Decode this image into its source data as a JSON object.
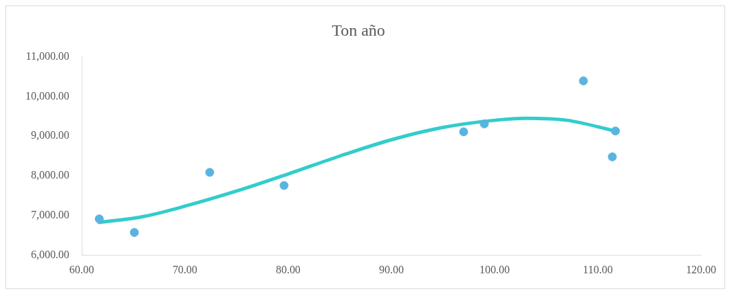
{
  "chart_data": {
    "type": "scatter",
    "title": "Ton año",
    "xlim": [
      60,
      120
    ],
    "xticks": [
      {
        "value": 60,
        "label": "60.00"
      },
      {
        "value": 70,
        "label": "70.00"
      },
      {
        "value": 80,
        "label": "80.00"
      },
      {
        "value": 90,
        "label": "90.00"
      },
      {
        "value": 100,
        "label": "100.00"
      },
      {
        "value": 110,
        "label": "110.00"
      },
      {
        "value": 120,
        "label": "120.00"
      }
    ],
    "ylim": [
      6000,
      11000
    ],
    "yticks": [
      {
        "value": 6000,
        "label": "6,000.00"
      },
      {
        "value": 7000,
        "label": "7,000.00"
      },
      {
        "value": 8000,
        "label": "8,000.00"
      },
      {
        "value": 9000,
        "label": "9,000.00"
      },
      {
        "value": 10000,
        "label": "10,000.00"
      },
      {
        "value": 11000,
        "label": "11,000.00"
      }
    ],
    "grid": false,
    "legend": false,
    "marker": "circle",
    "series": [
      {
        "type": "scatter",
        "color": "#5ab4e0",
        "x": [
          61.7,
          65.1,
          72.4,
          79.6,
          97.0,
          99.0,
          108.6,
          111.4,
          111.7
        ],
        "values": [
          6920,
          6580,
          8090,
          7760,
          9110,
          9310,
          10390,
          8480,
          9130
        ]
      },
      {
        "type": "line",
        "color": "#33cccc",
        "line_style": "solid",
        "marker": "none",
        "x": [
          61.7,
          66,
          70,
          75,
          80,
          85,
          90,
          95,
          100,
          103,
          107,
          111.7
        ],
        "values": [
          6830,
          6980,
          7240,
          7620,
          8050,
          8500,
          8910,
          9220,
          9400,
          9450,
          9400,
          9130
        ]
      }
    ]
  }
}
